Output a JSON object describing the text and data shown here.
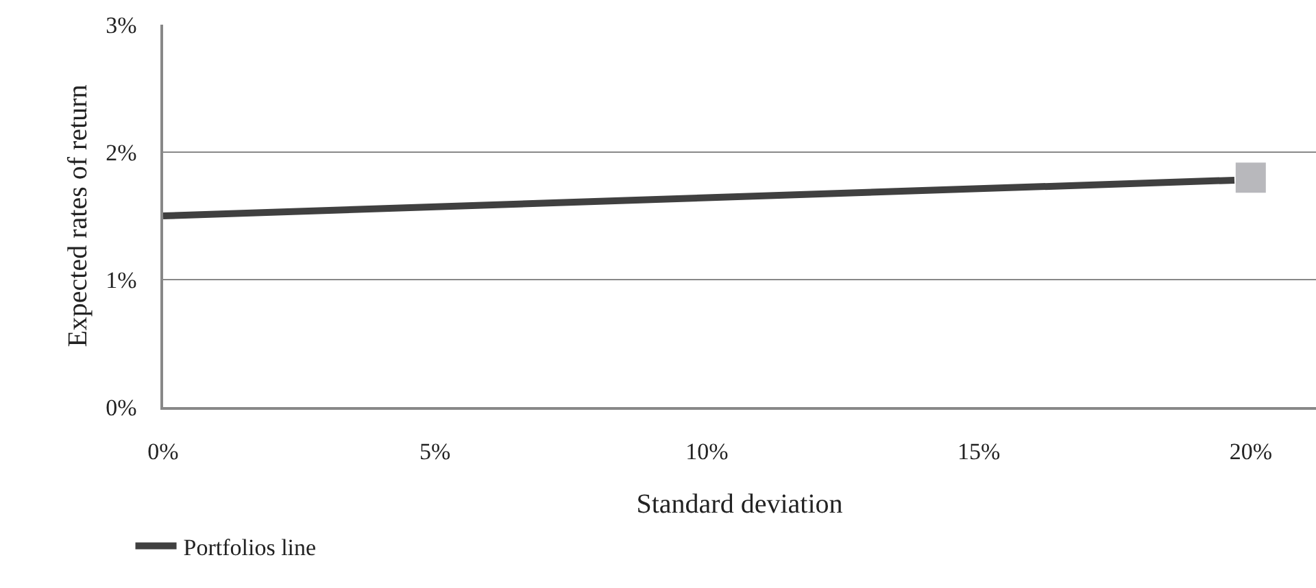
{
  "chart_data": {
    "type": "line",
    "xlabel": "Standard deviation",
    "ylabel": "Expected rates of return",
    "series": [
      {
        "name": "Portfolios line",
        "color": "#404040",
        "x": [
          0,
          19.7
        ],
        "values": [
          1.5,
          1.78
        ],
        "marker": "none"
      },
      {
        "type": "scatter",
        "color": "#b8b8bc",
        "x": [
          20
        ],
        "values": [
          1.8
        ],
        "marker": "square"
      }
    ],
    "xlim": [
      0,
      21.2
    ],
    "xticks": [
      {
        "value": 0,
        "label": "0%"
      },
      {
        "value": 5,
        "label": "5%"
      },
      {
        "value": 10,
        "label": "10%"
      },
      {
        "value": 15,
        "label": "15%"
      },
      {
        "value": 20,
        "label": "20%"
      }
    ],
    "ylim": [
      0,
      3
    ],
    "yticks": [
      {
        "value": 0,
        "label": "0%"
      },
      {
        "value": 1,
        "label": "1%"
      },
      {
        "value": 2,
        "label": "2%"
      },
      {
        "value": 3,
        "label": "3%"
      }
    ],
    "grid": "y",
    "legend": "bottom left"
  }
}
